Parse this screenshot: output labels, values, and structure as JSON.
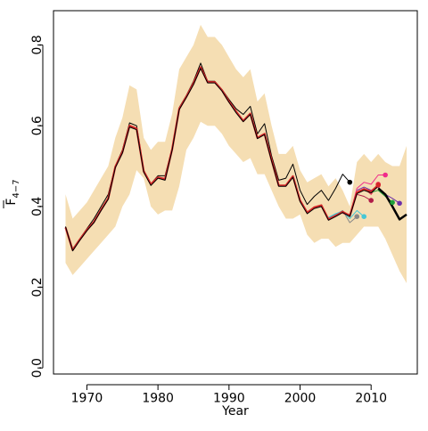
{
  "chart_data": {
    "type": "line",
    "title": "",
    "xlabel": "Year",
    "ylabel_main": "F",
    "ylabel_sub": "4−7",
    "xlim": [
      1965.3,
      2016.5
    ],
    "ylim": [
      -0.015,
      0.885
    ],
    "xticks": [
      1970,
      1980,
      1990,
      2000,
      2010
    ],
    "yticks": [
      0.0,
      0.2,
      0.4,
      0.6,
      0.8
    ],
    "xtick_labels": [
      "1970",
      "1980",
      "1990",
      "2000",
      "2010"
    ],
    "ytick_labels": [
      "0.0",
      "0.2",
      "0.4",
      "0.6",
      "0.8"
    ],
    "grid": false,
    "legend": "none",
    "band": {
      "color": "#F5DEB3",
      "x": [
        1967,
        1968,
        1969,
        1970,
        1971,
        1972,
        1973,
        1974,
        1975,
        1976,
        1977,
        1978,
        1979,
        1980,
        1981,
        1982,
        1983,
        1984,
        1985,
        1986,
        1987,
        1988,
        1989,
        1990,
        1991,
        1992,
        1993,
        1994,
        1995,
        1996,
        1997,
        1998,
        1999,
        2000,
        2001,
        2002,
        2003,
        2004,
        2005,
        2006,
        2007,
        2008,
        2009,
        2010,
        2011,
        2012,
        2013,
        2014,
        2015
      ],
      "upper": [
        0.43,
        0.37,
        0.39,
        0.41,
        0.44,
        0.47,
        0.5,
        0.57,
        0.62,
        0.7,
        0.69,
        0.57,
        0.54,
        0.56,
        0.56,
        0.63,
        0.74,
        0.77,
        0.8,
        0.85,
        0.82,
        0.82,
        0.8,
        0.77,
        0.74,
        0.72,
        0.74,
        0.66,
        0.68,
        0.6,
        0.53,
        0.53,
        0.55,
        0.49,
        0.46,
        0.47,
        0.48,
        0.45,
        0.47,
        0.44,
        0.4,
        0.51,
        0.53,
        0.51,
        0.53,
        0.51,
        0.5,
        0.5,
        0.55
      ],
      "lower": [
        0.26,
        0.23,
        0.25,
        0.27,
        0.29,
        0.31,
        0.33,
        0.35,
        0.4,
        0.43,
        0.49,
        0.47,
        0.4,
        0.38,
        0.39,
        0.39,
        0.45,
        0.54,
        0.57,
        0.61,
        0.6,
        0.6,
        0.58,
        0.55,
        0.53,
        0.51,
        0.52,
        0.48,
        0.48,
        0.44,
        0.4,
        0.37,
        0.37,
        0.38,
        0.33,
        0.31,
        0.32,
        0.32,
        0.3,
        0.31,
        0.31,
        0.33,
        0.35,
        0.35,
        0.35,
        0.32,
        0.28,
        0.24,
        0.21
      ]
    },
    "series": [
      {
        "color": "#000000",
        "width": 1.0,
        "x": [
          1967,
          1968,
          1969,
          1970,
          1971,
          1972,
          1973,
          1974,
          1975,
          1976,
          1977,
          1978,
          1979,
          1980,
          1981,
          1982,
          1983,
          1984,
          1985,
          1986,
          1987,
          1988,
          1989,
          1990,
          1991,
          1992,
          1993,
          1994,
          1995,
          1996,
          1997,
          1998,
          1999,
          2000,
          2001,
          2002,
          2003,
          2004,
          2005,
          2006,
          2007
        ],
        "y": [
          0.35,
          0.295,
          0.32,
          0.345,
          0.37,
          0.4,
          0.43,
          0.5,
          0.54,
          0.607,
          0.6,
          0.49,
          0.456,
          0.476,
          0.476,
          0.545,
          0.645,
          0.675,
          0.71,
          0.755,
          0.71,
          0.71,
          0.69,
          0.665,
          0.642,
          0.628,
          0.648,
          0.58,
          0.605,
          0.525,
          0.465,
          0.47,
          0.505,
          0.44,
          0.405,
          0.425,
          0.44,
          0.415,
          0.445,
          0.48,
          0.46
        ],
        "end_marker": true
      },
      {
        "color": "#888888",
        "width": 1.0,
        "x": [
          2004,
          2005,
          2006,
          2007,
          2008
        ],
        "y": [
          0.372,
          0.38,
          0.39,
          0.36,
          0.375
        ],
        "end_marker": true
      },
      {
        "color": "#46C7D6",
        "width": 1.0,
        "x": [
          2004,
          2005,
          2006,
          2007,
          2008,
          2009
        ],
        "y": [
          0.373,
          0.382,
          0.388,
          0.37,
          0.39,
          0.375
        ],
        "end_marker": true
      },
      {
        "color": "#B01C48",
        "width": 1.0,
        "x": [
          2006,
          2007,
          2008,
          2009,
          2010
        ],
        "y": [
          0.385,
          0.38,
          0.43,
          0.425,
          0.415
        ],
        "end_marker": true
      },
      {
        "color": "#E3234A",
        "width": 1.0,
        "x": [
          2006,
          2007,
          2008,
          2009,
          2010,
          2011
        ],
        "y": [
          0.383,
          0.378,
          0.435,
          0.445,
          0.43,
          0.455
        ],
        "end_marker": true
      },
      {
        "color": "#F02B8A",
        "width": 1.0,
        "x": [
          2006,
          2007,
          2008,
          2009,
          2010,
          2011,
          2012
        ],
        "y": [
          0.384,
          0.378,
          0.445,
          0.46,
          0.455,
          0.478,
          0.478
        ],
        "end_marker": true
      },
      {
        "color": "#6C2FA8",
        "width": 1.0,
        "x": [
          2008,
          2009,
          2010,
          2011,
          2012,
          2013,
          2014
        ],
        "y": [
          0.44,
          0.448,
          0.44,
          0.448,
          0.43,
          0.42,
          0.408
        ],
        "end_marker": true
      },
      {
        "color": "#1E9E3A",
        "width": 1.0,
        "x": [
          2008,
          2009,
          2010,
          2011,
          2012,
          2013
        ],
        "y": [
          0.435,
          0.44,
          0.435,
          0.44,
          0.425,
          0.41
        ],
        "end_marker": true
      },
      {
        "color": "#D62728",
        "width": 2.2,
        "x": [
          1967,
          1968,
          1969,
          1970,
          1971,
          1972,
          1973,
          1974,
          1975,
          1976,
          1977,
          1978,
          1979,
          1980,
          1981,
          1982,
          1983,
          1984,
          1985,
          1986,
          1987,
          1988,
          1989,
          1990,
          1991,
          1992,
          1993,
          1994,
          1995,
          1996,
          1997,
          1998,
          1999,
          2000,
          2001,
          2002,
          2003,
          2004,
          2005,
          2006,
          2007,
          2008,
          2009,
          2010,
          2011
        ],
        "y": [
          0.348,
          0.292,
          0.318,
          0.342,
          0.362,
          0.392,
          0.42,
          0.498,
          0.535,
          0.6,
          0.593,
          0.487,
          0.455,
          0.472,
          0.468,
          0.542,
          0.642,
          0.672,
          0.705,
          0.745,
          0.708,
          0.708,
          0.688,
          0.66,
          0.635,
          0.612,
          0.63,
          0.57,
          0.58,
          0.515,
          0.452,
          0.452,
          0.475,
          0.415,
          0.385,
          0.398,
          0.403,
          0.368,
          0.377,
          0.387,
          0.377,
          0.435,
          0.443,
          0.437,
          0.453
        ],
        "end_marker": true
      },
      {
        "color": "#000000",
        "width": 1.0,
        "x": [
          1967,
          1968,
          1969,
          1970,
          1971,
          1972,
          1973,
          1974,
          1975,
          1976,
          1977,
          1978,
          1979,
          1980,
          1981,
          1982,
          1983,
          1984,
          1985,
          1986,
          1987,
          1988,
          1989,
          1990,
          1991,
          1992,
          1993,
          1994,
          1995,
          1996,
          1997,
          1998,
          1999,
          2000,
          2001,
          2002,
          2003,
          2004,
          2005,
          2006,
          2007,
          2008,
          2009,
          2010,
          2011
        ],
        "y": [
          0.35,
          0.29,
          0.316,
          0.34,
          0.36,
          0.39,
          0.418,
          0.496,
          0.532,
          0.597,
          0.59,
          0.485,
          0.452,
          0.47,
          0.465,
          0.54,
          0.64,
          0.67,
          0.702,
          0.742,
          0.706,
          0.706,
          0.686,
          0.658,
          0.632,
          0.61,
          0.628,
          0.568,
          0.578,
          0.512,
          0.45,
          0.45,
          0.472,
          0.412,
          0.382,
          0.395,
          0.4,
          0.366,
          0.375,
          0.385,
          0.375,
          0.432,
          0.44,
          0.434,
          0.45
        ],
        "end_marker": false
      },
      {
        "color": "#000000",
        "width": 2.5,
        "x": [
          2011,
          2012,
          2013,
          2014,
          2015
        ],
        "y": [
          0.445,
          0.43,
          0.4,
          0.368,
          0.38
        ],
        "end_marker": false
      }
    ]
  }
}
